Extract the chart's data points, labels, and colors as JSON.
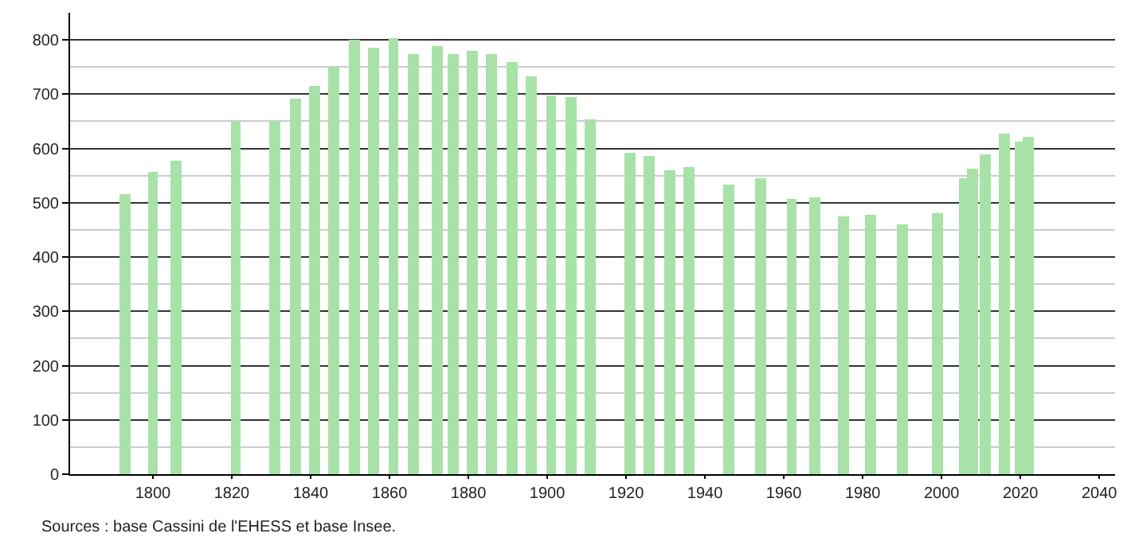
{
  "chart_data": {
    "type": "bar",
    "x": [
      1793,
      1800,
      1806,
      1821,
      1831,
      1836,
      1841,
      1846,
      1851,
      1856,
      1861,
      1866,
      1872,
      1876,
      1881,
      1886,
      1891,
      1896,
      1901,
      1906,
      1911,
      1921,
      1926,
      1931,
      1936,
      1946,
      1954,
      1962,
      1968,
      1975,
      1982,
      1990,
      1999,
      2006,
      2008,
      2011,
      2016,
      2020,
      2022
    ],
    "values": [
      515,
      557,
      578,
      650,
      650,
      692,
      716,
      751,
      800,
      786,
      803,
      774,
      789,
      774,
      780,
      774,
      758,
      733,
      699,
      695,
      653,
      592,
      586,
      561,
      566,
      533,
      544,
      507,
      509,
      474,
      477,
      461,
      480,
      544,
      562,
      589,
      627,
      612,
      621
    ],
    "color": "#a8e2a8",
    "xlim": [
      1779,
      2044
    ],
    "xticks": [
      1800,
      1820,
      1840,
      1860,
      1880,
      1900,
      1920,
      1940,
      1960,
      1980,
      2000,
      2020,
      2040
    ],
    "ylim": [
      0,
      850
    ],
    "yticks": [
      0,
      100,
      200,
      300,
      400,
      500,
      600,
      700,
      800
    ],
    "grid": "y",
    "annotations": [
      "Sources : base Cassini de l'EHESS et base Insee."
    ]
  }
}
